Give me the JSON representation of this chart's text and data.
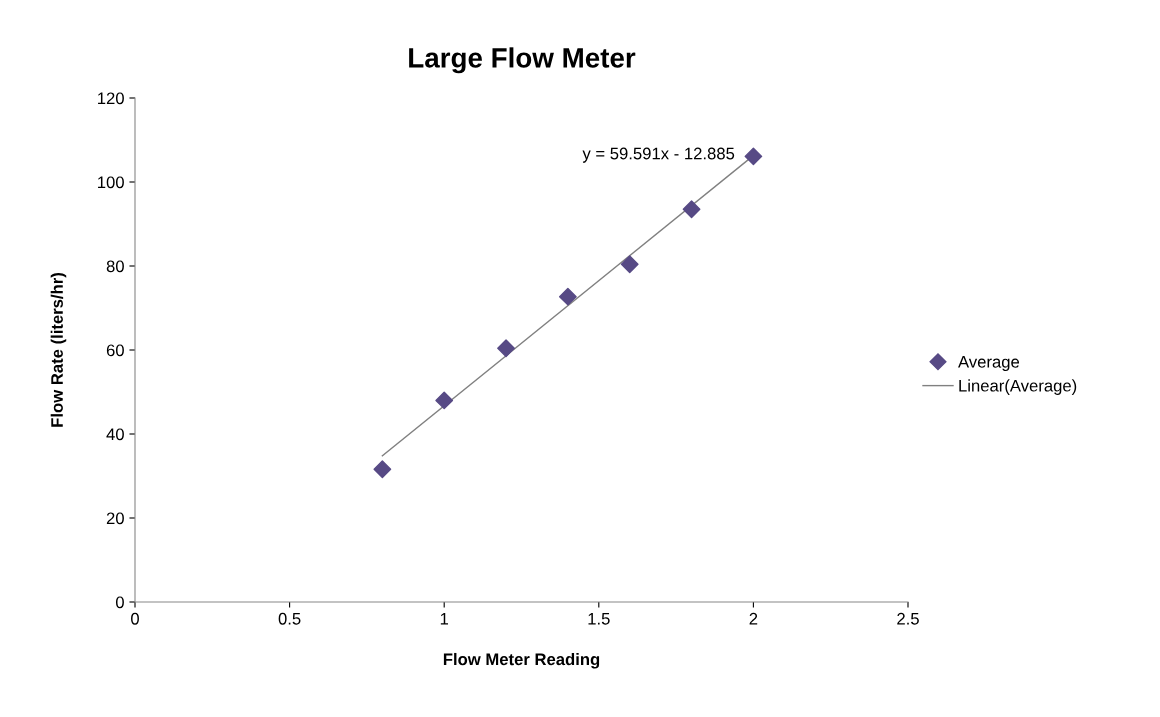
{
  "chart_data": {
    "type": "scatter",
    "title": "Large Flow Meter",
    "xlabel": "Flow Meter Reading",
    "ylabel": "Flow Rate (liters/hr)",
    "x": [
      0.8,
      1.0,
      1.2,
      1.4,
      1.6,
      1.8,
      2.0
    ],
    "series": [
      {
        "name": "Average",
        "color": "#574a85",
        "marker": "diamond",
        "values": [
          31.6,
          48.0,
          60.4,
          72.7,
          80.4,
          93.5,
          106.1
        ]
      },
      {
        "name": "Linear(Average)",
        "type": "line",
        "color": "#808080",
        "marker": "none",
        "x": [
          0.8,
          2.0
        ],
        "values": [
          34.8,
          106.3
        ]
      }
    ],
    "annotations": [
      "y = 59.591x - 12.885"
    ],
    "xlim": [
      0,
      2.5
    ],
    "xticks": [
      0,
      0.5,
      1,
      1.5,
      2,
      2.5
    ],
    "ylim": [
      0,
      120
    ],
    "yticks": [
      0,
      20,
      40,
      60,
      80,
      100,
      120
    ],
    "grid": false,
    "legend": "right"
  }
}
